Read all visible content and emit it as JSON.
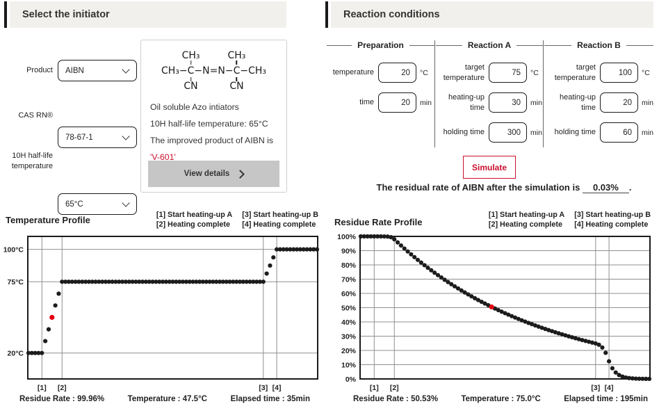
{
  "initiator": {
    "heading": "Select the initiator",
    "product_label": "Product",
    "product_value": "AIBN",
    "cas_label": "CAS RN®",
    "cas_value": "78-67-1",
    "halflife_label": "10H half-life temperature",
    "halflife_value": "65°C",
    "structure": {
      "methyl": "CH₃",
      "bond": "−",
      "carbon": "C",
      "azo": "−N=N−",
      "nitrile": "CN"
    },
    "info_lines": [
      "Oil soluble Azo intiators",
      "10H half-life temperature: 65°C",
      "The improved product of AIBN is"
    ],
    "info_highlight": "'V-601'",
    "view_details_label": "View details"
  },
  "reaction": {
    "heading": "Reaction conditions",
    "columns": [
      {
        "header": "Preparation",
        "rows": [
          {
            "label": "temperature",
            "value": "20",
            "unit": "°C"
          },
          {
            "label": "time",
            "value": "20",
            "unit": "min"
          }
        ]
      },
      {
        "header": "Reaction A",
        "rows": [
          {
            "label": "target temperature",
            "value": "75",
            "unit": "°C"
          },
          {
            "label": "heating-up time",
            "value": "30",
            "unit": "min"
          },
          {
            "label": "holding time",
            "value": "300",
            "unit": "min"
          }
        ]
      },
      {
        "header": "Reaction B",
        "rows": [
          {
            "label": "target temperature",
            "value": "100",
            "unit": "°C"
          },
          {
            "label": "heating-up time",
            "value": "20",
            "unit": "min"
          },
          {
            "label": "holding time",
            "value": "60",
            "unit": "min"
          }
        ]
      }
    ],
    "simulate_label": "Simulate",
    "result_prefix": "The residual rate of AIBN after the simulation is",
    "result_value": "0.03%",
    "result_suffix": "."
  },
  "colors": {
    "accent_red": "#c8102e",
    "dot_red": "#e60012",
    "dot_black": "#1c1c1c",
    "grid_gray": "#8f8f8f",
    "header_bg": "#f1f0ed"
  },
  "chart_data": [
    {
      "type": "scatter",
      "title": "Temperature Profile",
      "legend": [
        "[1] Start heating-up A",
        "[2] Heating complete",
        "[3] Start heating-up B",
        "[4] Heating complete"
      ],
      "xlim": [
        0,
        430
      ],
      "ylim": [
        0,
        110
      ],
      "yticks": [
        20,
        75,
        100
      ],
      "ytick_labels": [
        "20°C",
        "75°C",
        "100°C"
      ],
      "markers": [
        {
          "label": "[1]",
          "x": 20
        },
        {
          "label": "[2]",
          "x": 50
        },
        {
          "label": "[3]",
          "x": 350
        },
        {
          "label": "[4]",
          "x": 370
        }
      ],
      "x": [
        0,
        5,
        10,
        15,
        20,
        25,
        30,
        35,
        40,
        45,
        50,
        55,
        60,
        65,
        70,
        75,
        80,
        85,
        90,
        95,
        100,
        105,
        110,
        115,
        120,
        125,
        130,
        135,
        140,
        145,
        150,
        155,
        160,
        165,
        170,
        175,
        180,
        185,
        190,
        195,
        200,
        205,
        210,
        215,
        220,
        225,
        230,
        235,
        240,
        245,
        250,
        255,
        260,
        265,
        270,
        275,
        280,
        285,
        290,
        295,
        300,
        305,
        310,
        315,
        320,
        325,
        330,
        335,
        340,
        345,
        350,
        355,
        360,
        365,
        370,
        375,
        380,
        385,
        390,
        395,
        400,
        405,
        410,
        415,
        420,
        425,
        430
      ],
      "values": [
        20,
        20,
        20,
        20,
        20,
        29.2,
        38.3,
        47.5,
        56.7,
        65.8,
        75,
        75,
        75,
        75,
        75,
        75,
        75,
        75,
        75,
        75,
        75,
        75,
        75,
        75,
        75,
        75,
        75,
        75,
        75,
        75,
        75,
        75,
        75,
        75,
        75,
        75,
        75,
        75,
        75,
        75,
        75,
        75,
        75,
        75,
        75,
        75,
        75,
        75,
        75,
        75,
        75,
        75,
        75,
        75,
        75,
        75,
        75,
        75,
        75,
        75,
        75,
        75,
        75,
        75,
        75,
        75,
        75,
        75,
        75,
        75,
        75,
        81.3,
        87.5,
        93.8,
        100,
        100,
        100,
        100,
        100,
        100,
        100,
        100,
        100,
        100,
        100,
        100,
        100
      ],
      "highlight": {
        "x": 35,
        "y": 47.5
      },
      "status_items": [
        "Residue Rate : 99.96%",
        "Temperature : 47.5°C",
        "Elapsed time : 35min"
      ]
    },
    {
      "type": "scatter",
      "title": "Residue Rate Profile",
      "legend": [
        "[1] Start heating-up A",
        "[2] Heating complete",
        "[3] Start heating-up B",
        "[4] Heating complete"
      ],
      "xlim": [
        0,
        430
      ],
      "ylim": [
        0,
        100
      ],
      "yticks": [
        0,
        10,
        20,
        30,
        40,
        50,
        60,
        70,
        80,
        90,
        100
      ],
      "ytick_labels": [
        "0%",
        "10%",
        "20%",
        "30%",
        "40%",
        "50%",
        "60%",
        "70%",
        "80%",
        "90%",
        "100%"
      ],
      "markers": [
        {
          "label": "[1]",
          "x": 20
        },
        {
          "label": "[2]",
          "x": 50
        },
        {
          "label": "[3]",
          "x": 350
        },
        {
          "label": "[4]",
          "x": 370
        }
      ],
      "x": [
        0,
        5,
        10,
        15,
        20,
        25,
        30,
        35,
        40,
        45,
        50,
        55,
        60,
        65,
        70,
        75,
        80,
        85,
        90,
        95,
        100,
        105,
        110,
        115,
        120,
        125,
        130,
        135,
        140,
        145,
        150,
        155,
        160,
        165,
        170,
        175,
        180,
        185,
        190,
        195,
        200,
        205,
        210,
        215,
        220,
        225,
        230,
        235,
        240,
        245,
        250,
        255,
        260,
        265,
        270,
        275,
        280,
        285,
        290,
        295,
        300,
        305,
        310,
        315,
        320,
        325,
        330,
        335,
        340,
        345,
        350,
        355,
        360,
        365,
        370,
        375,
        380,
        385,
        390,
        395,
        400,
        405,
        410,
        415,
        420,
        425,
        430
      ],
      "values": [
        100,
        100,
        100,
        100,
        100,
        100,
        99.99,
        99.96,
        99.86,
        99.45,
        97.99,
        95.78,
        93.61,
        91.5,
        89.43,
        87.41,
        85.44,
        83.51,
        81.63,
        79.78,
        77.98,
        76.22,
        74.5,
        72.82,
        71.17,
        69.57,
        67.99,
        66.46,
        64.96,
        63.49,
        62.06,
        60.66,
        59.29,
        57.95,
        56.64,
        55.36,
        54.11,
        52.89,
        51.69,
        50.53,
        49.39,
        48.27,
        47.18,
        46.12,
        45.08,
        44.06,
        43.06,
        42.09,
        41.14,
        40.21,
        39.3,
        38.42,
        37.55,
        36.7,
        35.87,
        35.06,
        34.27,
        33.5,
        32.74,
        32.0,
        31.28,
        30.57,
        29.88,
        29.21,
        28.55,
        27.9,
        27.27,
        26.66,
        26.06,
        25.47,
        24.89,
        23.97,
        22.02,
        18.3,
        12.37,
        7.49,
        4.53,
        2.74,
        1.66,
        1.01,
        0.61,
        0.37,
        0.22,
        0.14,
        0.08,
        0.05,
        0.03
      ],
      "highlight": {
        "x": 195,
        "y": 50.53
      },
      "status_items": [
        "Residue Rate : 50.53%",
        "Temperature : 75.0°C",
        "Elapsed time : 195min"
      ]
    }
  ]
}
